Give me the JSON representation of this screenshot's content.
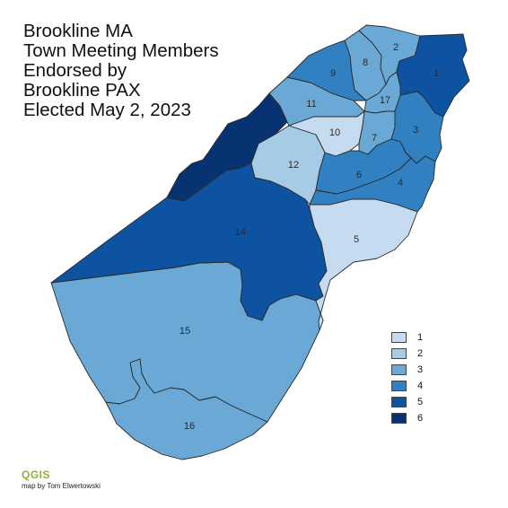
{
  "title_lines": [
    "Brookline MA",
    "Town Meeting Members",
    "Endorsed by",
    "Brookline PAX",
    "Elected May 2, 2023"
  ],
  "colors": {
    "1": "#c6dbef",
    "2": "#a6cbe5",
    "3": "#6aa8d6",
    "4": "#3181c2",
    "5": "#0d53a1",
    "6": "#083372"
  },
  "legend": [
    {
      "label": "1"
    },
    {
      "label": "2"
    },
    {
      "label": "3"
    },
    {
      "label": "4"
    },
    {
      "label": "5"
    },
    {
      "label": "6"
    }
  ],
  "precincts": [
    {
      "id": "1",
      "label": "1",
      "value": 5
    },
    {
      "id": "2",
      "label": "2",
      "value": 3
    },
    {
      "id": "3",
      "label": "3",
      "value": 4
    },
    {
      "id": "4",
      "label": "4",
      "value": 4
    },
    {
      "id": "5",
      "label": "5",
      "value": 1
    },
    {
      "id": "6",
      "label": "6",
      "value": 4
    },
    {
      "id": "7",
      "label": "7",
      "value": 3
    },
    {
      "id": "8",
      "label": "8",
      "value": 3
    },
    {
      "id": "9",
      "label": "9",
      "value": 4
    },
    {
      "id": "10",
      "label": "10",
      "value": 1
    },
    {
      "id": "11",
      "label": "11",
      "value": 3
    },
    {
      "id": "12",
      "label": "12",
      "value": 2
    },
    {
      "id": "13",
      "label": "",
      "value": 6
    },
    {
      "id": "14",
      "label": "14",
      "value": 5
    },
    {
      "id": "15",
      "label": "15",
      "value": 3
    },
    {
      "id": "16",
      "label": "16",
      "value": 3
    },
    {
      "id": "17",
      "label": "17",
      "value": 3
    }
  ],
  "credit": {
    "logo_text": "QGIS",
    "author": "map by Tom Elwertowski"
  }
}
